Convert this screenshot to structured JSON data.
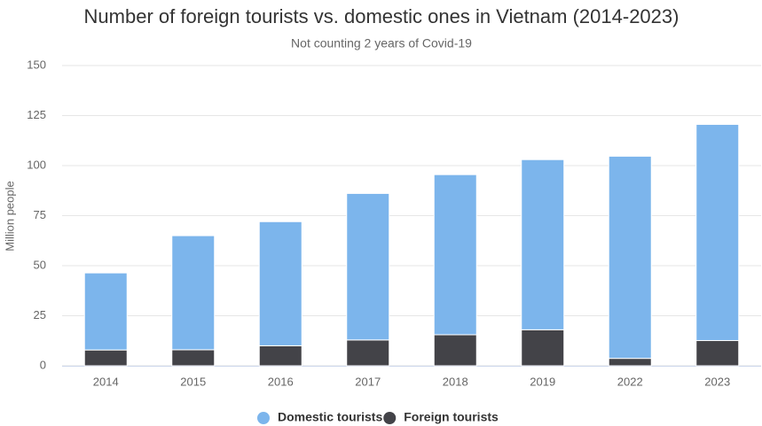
{
  "chart_data": {
    "type": "stacked-bar",
    "title": "Number of foreign tourists vs. domestic ones in Vietnam (2014-2023)",
    "subtitle": "Not counting 2 years of Covid-19",
    "y_label": "Million people",
    "categories": [
      "2014",
      "2015",
      "2016",
      "2017",
      "2018",
      "2019",
      "2022",
      "2023"
    ],
    "series": [
      {
        "name": "Domestic tourists",
        "color": "#7cb5ec",
        "values": [
          38.5,
          57,
          62,
          73.2,
          80,
          85,
          101,
          108
        ]
      },
      {
        "name": "Foreign tourists",
        "color": "#434348",
        "values": [
          7.9,
          8,
          10,
          12.9,
          15.5,
          18,
          3.7,
          12.6
        ]
      }
    ],
    "ylim": [
      0,
      150
    ],
    "yticks": [
      0,
      25,
      50,
      75,
      100,
      125,
      150
    ],
    "grid": true
  }
}
